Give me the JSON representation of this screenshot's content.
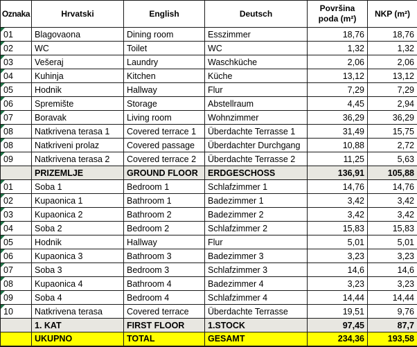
{
  "colors": {
    "subtotal_row_bg": "#E8E7E1",
    "total_row_bg": "#FFFF00",
    "grid_line": "#1A1A1A",
    "error_triangle_green": "#1E7145"
  },
  "table": {
    "headers": {
      "code": "Oznaka",
      "croatian": "Hrvatski",
      "english": "English",
      "german": "Deutsch",
      "floor_area": "Površina\npoda (m²)",
      "nkp": "NKP (m²)"
    },
    "rows": [
      {
        "type": "room",
        "code": "01",
        "hr": "Blagovaona",
        "en": "Dining room",
        "de": "Esszimmer",
        "area": "18,76",
        "nkp": "18,76"
      },
      {
        "type": "room",
        "code": "02",
        "hr": "WC",
        "en": "Toilet",
        "de": "WC",
        "area": "1,32",
        "nkp": "1,32"
      },
      {
        "type": "room",
        "code": "03",
        "hr": "Vešeraj",
        "en": "Laundry",
        "de": "Waschküche",
        "area": "2,06",
        "nkp": "2,06"
      },
      {
        "type": "room",
        "code": "04",
        "hr": "Kuhinja",
        "en": "Kitchen",
        "de": "Küche",
        "area": "13,12",
        "nkp": "13,12"
      },
      {
        "type": "room",
        "code": "05",
        "hr": "Hodnik",
        "en": "Hallway",
        "de": "Flur",
        "area": "7,29",
        "nkp": "7,29"
      },
      {
        "type": "room",
        "code": "06",
        "hr": "Spremište",
        "en": "Storage",
        "de": "Abstellraum",
        "area": "4,45",
        "nkp": "2,94"
      },
      {
        "type": "room",
        "code": "07",
        "hr": "Boravak",
        "en": "Living room",
        "de": "Wohnzimmer",
        "area": "36,29",
        "nkp": "36,29"
      },
      {
        "type": "room",
        "code": "08",
        "hr": "Natkrivena terasa 1",
        "en": "Covered terrace 1",
        "de": "Überdachte Terrasse 1",
        "area": "31,49",
        "nkp": "15,75"
      },
      {
        "type": "room",
        "code": "08",
        "hr": "Natkriveni prolaz",
        "en": "Covered passage",
        "de": "Überdachter Durchgang",
        "area": "10,88",
        "nkp": "2,72"
      },
      {
        "type": "room",
        "code": "09",
        "hr": "Natkrivena terasa 2",
        "en": "Covered terrace 2",
        "de": "Überdachte Terrasse 2",
        "area": "11,25",
        "nkp": "5,63"
      },
      {
        "type": "subtotal",
        "code": "",
        "hr": "PRIZEMLJE",
        "en": "GROUND FLOOR",
        "de": "ERDGESCHOSS",
        "area": "136,91",
        "nkp": "105,88"
      },
      {
        "type": "room",
        "code": "01",
        "hr": "Soba 1",
        "en": "Bedroom 1",
        "de": "Schlafzimmer 1",
        "area": "14,76",
        "nkp": "14,76"
      },
      {
        "type": "room",
        "code": "02",
        "hr": "Kupaonica 1",
        "en": "Bathroom 1",
        "de": "Badezimmer 1",
        "area": "3,42",
        "nkp": "3,42"
      },
      {
        "type": "room",
        "code": "03",
        "hr": "Kupaonica 2",
        "en": "Bathroom 2",
        "de": "Badezimmer 2",
        "area": "3,42",
        "nkp": "3,42"
      },
      {
        "type": "room",
        "code": "04",
        "hr": "Soba 2",
        "en": "Bedroom 2",
        "de": "Schlafzimmer 2",
        "area": "15,83",
        "nkp": "15,83"
      },
      {
        "type": "room",
        "code": "05",
        "hr": "Hodnik",
        "en": "Hallway",
        "de": "Flur",
        "area": "5,01",
        "nkp": "5,01"
      },
      {
        "type": "room",
        "code": "06",
        "hr": "Kupaonica 3",
        "en": "Bathroom 3",
        "de": "Badezimmer 3",
        "area": "3,23",
        "nkp": "3,23"
      },
      {
        "type": "room",
        "code": "07",
        "hr": "Soba 3",
        "en": "Bedroom 3",
        "de": "Schlafzimmer 3",
        "area": "14,6",
        "nkp": "14,6"
      },
      {
        "type": "room",
        "code": "08",
        "hr": "Kupaonica 4",
        "en": "Bathroom 4",
        "de": "Badezimmer 4",
        "area": "3,23",
        "nkp": "3,23"
      },
      {
        "type": "room",
        "code": "09",
        "hr": "Soba 4",
        "en": "Bedroom 4",
        "de": "Schlafzimmer 4",
        "area": "14,44",
        "nkp": "14,44"
      },
      {
        "type": "room",
        "code": "10",
        "hr": "Natkrivena terasa",
        "en": "Covered terrace",
        "de": "Überdachte Terrasse",
        "area": "19,51",
        "nkp": "9,76"
      },
      {
        "type": "subtotal",
        "code": "",
        "hr": "1. KAT",
        "en": "FIRST FLOOR",
        "de": "1.STOCK",
        "area": "97,45",
        "nkp": "87,7"
      },
      {
        "type": "total",
        "code": "",
        "hr": "UKUPNO",
        "en": "TOTAL",
        "de": "GESAMT",
        "area": "234,36",
        "nkp": "193,58"
      }
    ]
  }
}
